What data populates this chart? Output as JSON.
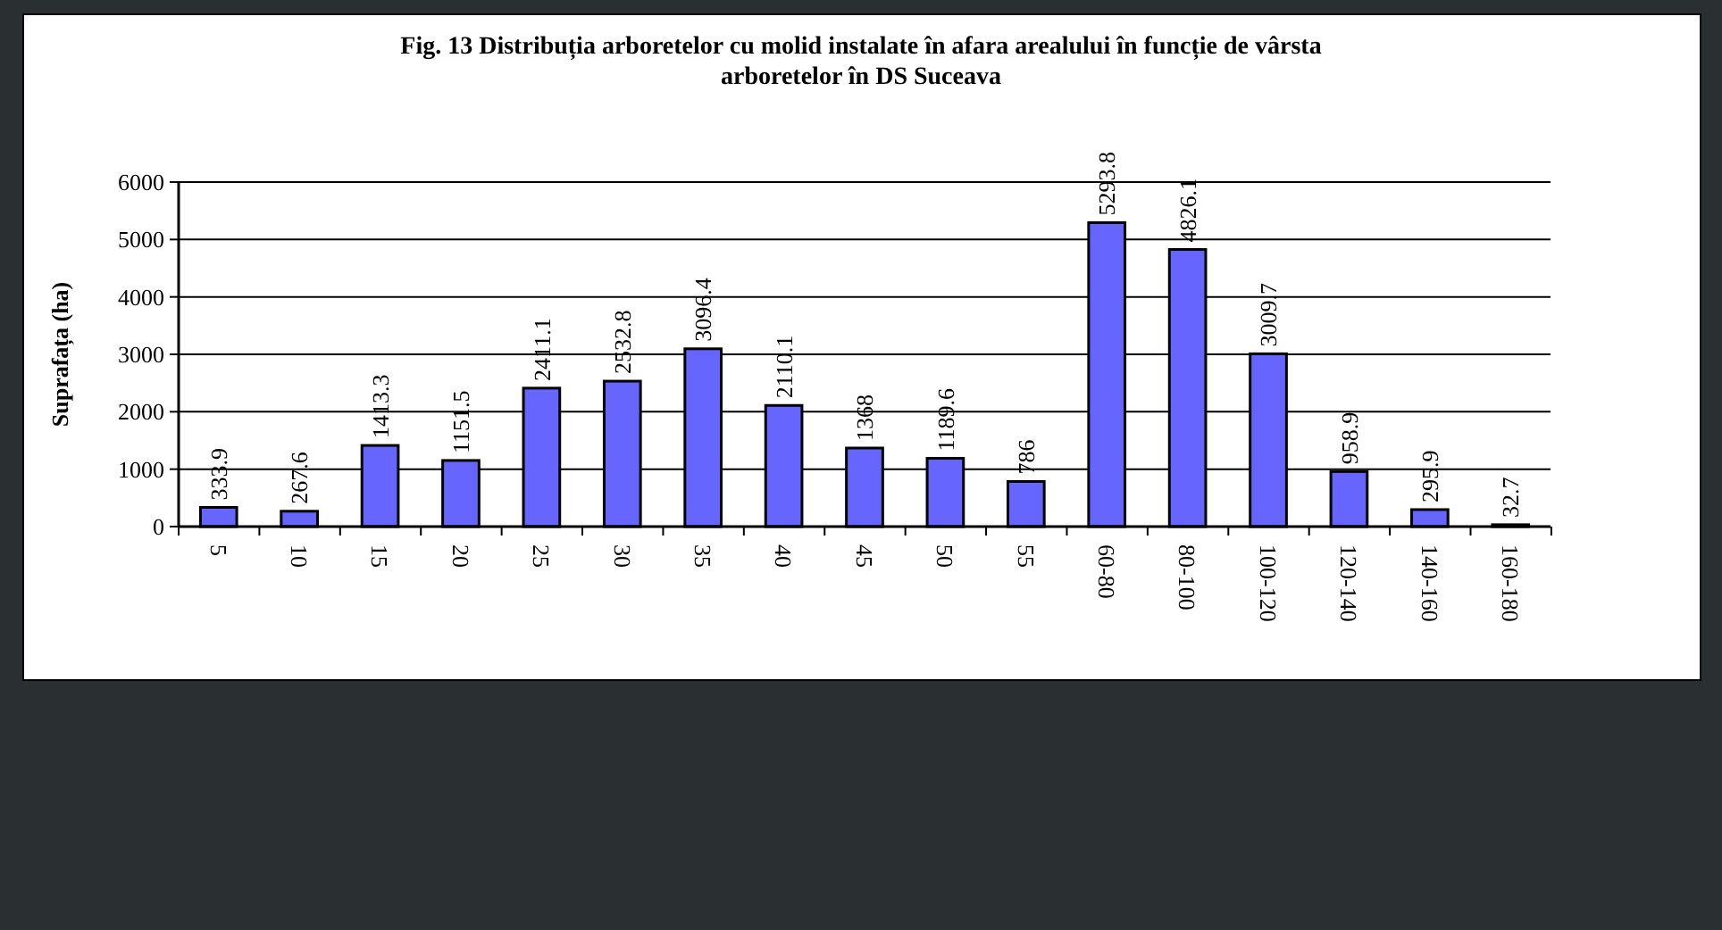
{
  "chart_data": {
    "type": "bar",
    "title": "Fig. 13 Distribuția arboretelor cu molid instalate în afara arealului în funcție de vârsta arboretelor în DS Suceava",
    "ylabel": "Suprafața (ha)",
    "categories": [
      "5",
      "10",
      "15",
      "20",
      "25",
      "30",
      "35",
      "40",
      "45",
      "50",
      "55",
      "60-80",
      "80-100",
      "100-120",
      "120-140",
      "140-160",
      "160-180"
    ],
    "values": [
      333.9,
      267.6,
      1413.3,
      1151.5,
      2411.1,
      2532.8,
      3096.4,
      2110.1,
      1368,
      1189.6,
      786,
      5293.8,
      4826.1,
      3009.7,
      958.9,
      295.9,
      32.7
    ],
    "color": "#6666ff",
    "ylim": [
      0,
      6000
    ],
    "yticks": [
      0,
      1000,
      2000,
      3000,
      4000,
      5000,
      6000
    ],
    "grid": "y",
    "data_labels": true
  }
}
